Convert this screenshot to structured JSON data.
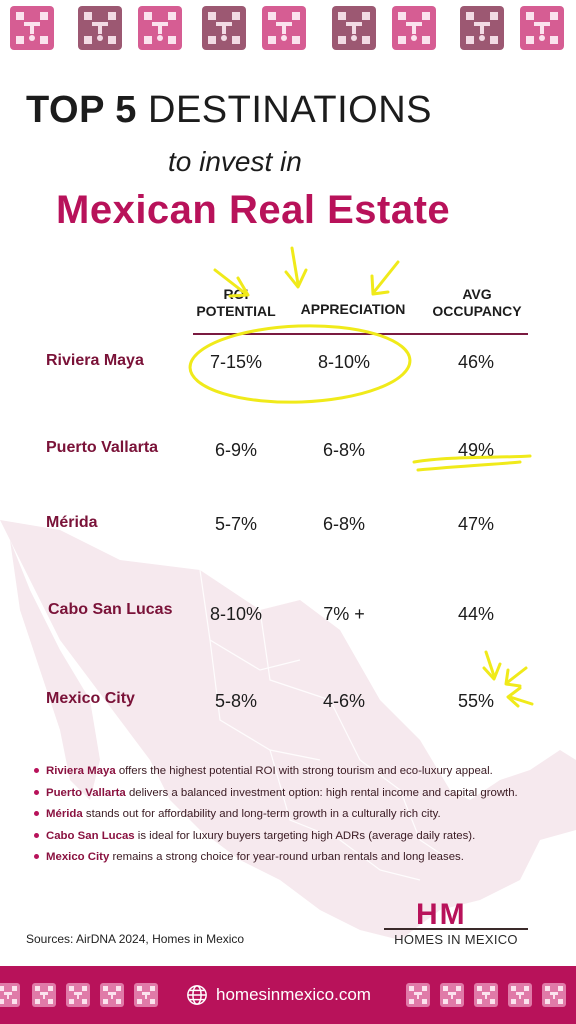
{
  "colors": {
    "brand": "#b8125a",
    "city_text": "#7a1238",
    "pattern_pink": "#d65d93",
    "pattern_mauve": "#9c5872",
    "highlight": "#f0ea1a",
    "map": "#f6e9ee"
  },
  "title": {
    "bold": "TOP 5",
    "rest": "DESTINATIONS",
    "sub": "to invest in",
    "main": "Mexican Real Estate"
  },
  "table": {
    "headers": {
      "roi_line1": "ROI",
      "roi_line2": "POTENTIAL",
      "appreciation": "APPRECIATION",
      "occ_line1": "AVG",
      "occ_line2": "OCCUPANCY"
    },
    "rows": [
      {
        "city": "Riviera Maya",
        "roi": "7-15%",
        "appreciation": "8-10%",
        "occupancy": "46%"
      },
      {
        "city": "Puerto Vallarta",
        "roi": "6-9%",
        "appreciation": "6-8%",
        "occupancy": "49%"
      },
      {
        "city": "Mérida",
        "roi": "5-7%",
        "appreciation": "6-8%",
        "occupancy": "47%"
      },
      {
        "city": "Cabo San Lucas",
        "roi": "8-10%",
        "appreciation": "7% +",
        "occupancy": "44%"
      },
      {
        "city": "Mexico City",
        "roi": "5-8%",
        "appreciation": "4-6%",
        "occupancy": "55%"
      }
    ]
  },
  "notes": [
    {
      "city": "Riviera Maya",
      "text": " offers the highest potential ROI with strong tourism and eco-luxury appeal."
    },
    {
      "city": "Puerto Vallarta",
      "text": " delivers a balanced investment option: high rental income and capital growth."
    },
    {
      "city": "Mérida",
      "text": " stands out for affordability and long-term growth in a culturally rich city."
    },
    {
      "city": "Cabo San Lucas",
      "text": " is ideal for luxury buyers targeting high ADRs (average daily rates)."
    },
    {
      "city": "Mexico City",
      "text": " remains a strong choice for year-round urban rentals and long leases."
    }
  ],
  "sources": "Sources:  AirDNA 2024, Homes in Mexico",
  "logo": {
    "mark": "HM",
    "text": "HOMES IN MEXICO"
  },
  "footer": {
    "url": "homesinmexico.com",
    "icon": "globe-icon"
  }
}
